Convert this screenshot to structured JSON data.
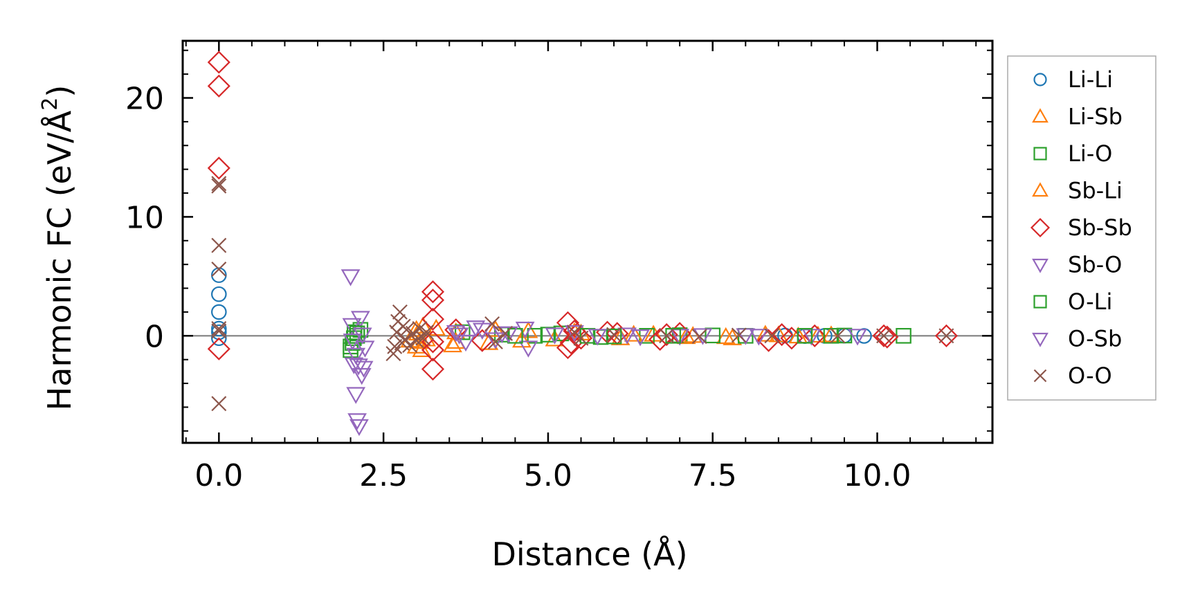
{
  "chart_data": {
    "type": "scatter",
    "title": "",
    "xlabel": "Distance (Å)",
    "ylabel": "Harmonic FC (eV/Å²)",
    "ylabel_main": "Harmonic FC (eV/Å",
    "ylabel_sup": "2",
    "ylabel_close": ")",
    "xlim": [
      -0.55,
      11.75
    ],
    "ylim": [
      -9.0,
      24.8
    ],
    "xticks": [
      0.0,
      2.5,
      5.0,
      7.5,
      10.0
    ],
    "xtick_labels": [
      "0.0",
      "2.5",
      "5.0",
      "7.5",
      "10.0"
    ],
    "yticks": [
      0,
      10,
      20
    ],
    "ytick_labels": [
      "0",
      "10",
      "20"
    ],
    "x_minor_step": 0.5,
    "y_minor_step": 2,
    "zero_line": true,
    "legend_position": "outside-right",
    "series": [
      {
        "name": "Li-Li",
        "marker": "circle",
        "color": "#1f77b4",
        "x": [
          0,
          0,
          0,
          0,
          0,
          0,
          8.6,
          8.9,
          9.2,
          9.5,
          9.8
        ],
        "y": [
          5.1,
          3.5,
          2.0,
          0.6,
          0.3,
          -0.2,
          0.02,
          -0.02,
          0.0,
          0.01,
          -0.01
        ]
      },
      {
        "name": "Li-Sb",
        "marker": "triangle-up",
        "color": "#ff7f0e",
        "x": [
          3.0,
          3.02,
          3.05,
          3.08,
          3.1,
          3.15,
          3.55,
          3.6,
          4.1,
          4.7,
          5.1,
          5.5,
          6.1,
          6.6,
          7.1,
          7.8,
          8.3,
          8.8,
          9.3
        ],
        "y": [
          0.5,
          0.2,
          -0.5,
          -1.2,
          0.8,
          -0.3,
          -0.8,
          0.3,
          -0.6,
          0.4,
          -0.3,
          0.2,
          -0.2,
          0.1,
          -0.1,
          -0.2,
          0.1,
          -0.05,
          0.05
        ]
      },
      {
        "name": "Li-O",
        "marker": "square",
        "color": "#2ca02c",
        "x": [
          2.0,
          2.03,
          2.06,
          2.1,
          2.15,
          3.7,
          4.3,
          4.8,
          5.2,
          5.8,
          6.5,
          7.0,
          8.0,
          9.5,
          10.4
        ],
        "y": [
          -1.2,
          -0.6,
          0.3,
          0.0,
          0.5,
          0.3,
          0.1,
          0.0,
          0.2,
          -0.1,
          0.0,
          0.05,
          0.0,
          0.02,
          0.0
        ]
      },
      {
        "name": "Sb-Li",
        "marker": "triangle-up",
        "color": "#ff7f0e",
        "x": [
          2.9,
          3.0,
          3.3,
          3.6,
          4.2,
          4.6,
          5.4,
          6.3,
          7.2,
          7.7,
          8.5,
          9.1
        ],
        "y": [
          -0.4,
          -0.9,
          0.6,
          -0.5,
          0.5,
          -0.4,
          0.3,
          0.1,
          0.0,
          -0.1,
          0.05,
          0.02
        ]
      },
      {
        "name": "Sb-Sb",
        "marker": "diamond",
        "color": "#d62728",
        "x": [
          0,
          0,
          0,
          0,
          3.25,
          3.25,
          3.25,
          3.25,
          3.25,
          3.25,
          3.6,
          4.0,
          5.3,
          5.3,
          5.35,
          5.4,
          5.5,
          5.9,
          6.05,
          6.7,
          6.8,
          7.0,
          8.35,
          8.55,
          8.7,
          9.05,
          10.1,
          10.15,
          11.05
        ],
        "y": [
          23.0,
          21.0,
          14.1,
          -1.1,
          3.7,
          3.0,
          1.4,
          -0.5,
          -1.2,
          -2.8,
          0.5,
          -0.4,
          1.1,
          -1.0,
          -0.6,
          0.4,
          -0.2,
          0.3,
          0.2,
          -0.3,
          0.1,
          0.2,
          -0.4,
          0.1,
          -0.2,
          0.0,
          0.0,
          -0.1,
          0.0
        ]
      },
      {
        "name": "Sb-O",
        "marker": "triangle-down",
        "color": "#9467bd",
        "x": [
          2.0,
          2.02,
          2.05,
          2.08,
          2.1,
          2.13,
          2.15,
          2.17,
          2.2,
          3.6,
          3.75,
          3.9,
          4.3,
          4.65,
          4.7,
          5.4,
          6.2,
          7.0,
          8.0,
          9.0
        ],
        "y": [
          5.0,
          0.9,
          -2.4,
          -4.9,
          -7.1,
          -7.6,
          1.5,
          -3.3,
          -2.7,
          0.3,
          -0.5,
          0.7,
          0.2,
          0.6,
          -1.0,
          0.3,
          0.1,
          0.0,
          0.05,
          0.0
        ]
      },
      {
        "name": "O-Li",
        "marker": "square",
        "color": "#2ca02c",
        "x": [
          2.0,
          2.05,
          2.1,
          4.5,
          5.0,
          5.6,
          6.0,
          6.9,
          7.5,
          8.9,
          9.3
        ],
        "y": [
          -0.9,
          -0.2,
          0.2,
          0.0,
          0.1,
          0.0,
          -0.05,
          0.0,
          0.03,
          0.0,
          0.0
        ]
      },
      {
        "name": "O-Sb",
        "marker": "triangle-down",
        "color": "#9467bd",
        "x": [
          2.03,
          2.08,
          2.12,
          2.18,
          2.22,
          3.65,
          4.0,
          4.2,
          4.4,
          5.1,
          5.75,
          6.4,
          7.35,
          8.2,
          9.7
        ],
        "y": [
          -0.4,
          -1.6,
          -2.5,
          0.1,
          -1.0,
          0.1,
          0.5,
          -0.3,
          0.2,
          0.1,
          0.0,
          -0.05,
          0.05,
          0.0,
          0.0
        ]
      },
      {
        "name": "O-O",
        "marker": "x",
        "color": "#8c564b",
        "x": [
          0,
          0,
          0,
          0,
          0,
          0,
          0,
          2.65,
          2.67,
          2.7,
          2.72,
          2.75,
          2.78,
          2.8,
          2.83,
          2.85,
          2.9,
          2.95,
          3.0,
          3.05,
          3.1,
          3.15,
          4.15,
          4.2,
          4.35,
          5.4,
          5.5,
          6.0,
          6.8,
          7.3,
          7.9,
          8.4,
          9.4,
          10.1,
          11.05
        ],
        "y": [
          12.8,
          12.6,
          7.6,
          5.6,
          0.6,
          0.4,
          -5.7,
          -1.5,
          -0.9,
          0.3,
          1.2,
          2.0,
          -0.6,
          0.8,
          -0.3,
          0.5,
          -0.8,
          0.2,
          -0.4,
          0.6,
          -0.2,
          0.3,
          1.0,
          -0.5,
          0.2,
          0.3,
          -0.2,
          0.1,
          0.0,
          -0.05,
          0.05,
          0.0,
          0.0,
          0.0,
          0.0
        ]
      }
    ]
  }
}
